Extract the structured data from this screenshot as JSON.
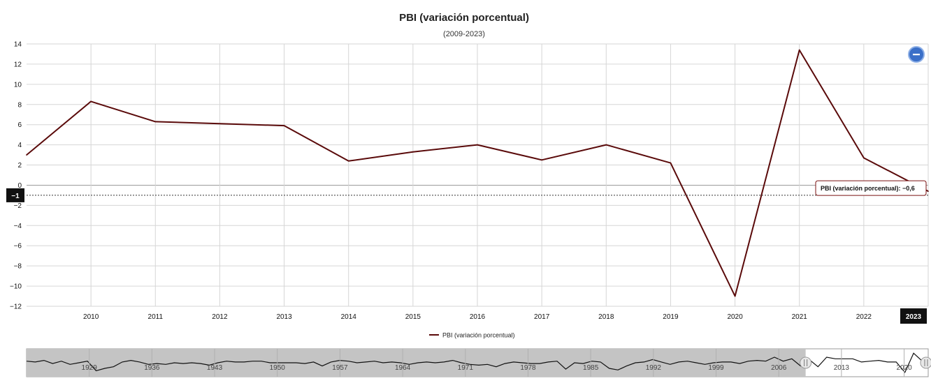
{
  "chart_data": {
    "type": "line",
    "title": "PBI (variación porcentual)",
    "subtitle": "(2009-2023)",
    "xlabel": "",
    "ylabel": "",
    "x": [
      2009,
      2010,
      2011,
      2012,
      2013,
      2014,
      2015,
      2016,
      2017,
      2018,
      2019,
      2020,
      2021,
      2022,
      2023
    ],
    "x_ticks": [
      "2010",
      "2011",
      "2012",
      "2013",
      "2014",
      "2015",
      "2016",
      "2017",
      "2018",
      "2019",
      "2020",
      "2021",
      "2022",
      "2023"
    ],
    "series": [
      {
        "name": "PBI (variación porcentual)",
        "values": [
          3.0,
          8.3,
          6.3,
          6.1,
          5.9,
          2.4,
          3.3,
          4.0,
          2.5,
          4.0,
          2.2,
          -11.0,
          13.4,
          2.7,
          -0.6
        ],
        "color": "#5a0a0a"
      }
    ],
    "ylim": [
      -12,
      14
    ],
    "y_ticks": [
      "14",
      "12",
      "10",
      "8",
      "6",
      "4",
      "2",
      "0",
      "-2",
      "-4",
      "-6",
      "-8",
      "-10",
      "-12"
    ],
    "grid": true,
    "legend_position": "bottom-center",
    "crosshair": {
      "y_label": "-1",
      "x_label": "2023"
    },
    "tooltip": {
      "text": "PBI (variación porcentual): -0,6"
    },
    "navigator": {
      "ticks": [
        "1929",
        "1936",
        "1943",
        "1950",
        "1957",
        "1964",
        "1971",
        "1978",
        "1985",
        "1992",
        "1999",
        "2006",
        "2013",
        "2020"
      ],
      "x_range": [
        1922,
        2023
      ],
      "selected_range": [
        2009,
        2023
      ],
      "values": [
        3,
        2,
        4,
        0,
        3,
        -1,
        1,
        3,
        -9,
        -6,
        -4,
        2,
        4,
        2,
        -1,
        0,
        -1,
        1,
        0,
        1,
        0,
        -2,
        1,
        3,
        2,
        2,
        3,
        3,
        1,
        1,
        1,
        1,
        0,
        2,
        -3,
        2,
        4,
        3,
        1,
        2,
        3,
        1,
        2,
        1,
        -1,
        1,
        2,
        1,
        2,
        4,
        1,
        -1,
        -2,
        -1,
        -4,
        0,
        2,
        1,
        0,
        0,
        2,
        3,
        -7,
        1,
        0,
        3,
        2,
        -6,
        -8,
        -3,
        1,
        2,
        5,
        2,
        -1,
        2,
        3,
        1,
        -1,
        1,
        2,
        2,
        0,
        3,
        4,
        3,
        8,
        3,
        6,
        -3,
        5,
        -4,
        8,
        6,
        6,
        6,
        2,
        3,
        4,
        2,
        2,
        -11,
        13,
        3,
        -1
      ]
    },
    "zoom_out_icon": "minus-circle-icon"
  }
}
